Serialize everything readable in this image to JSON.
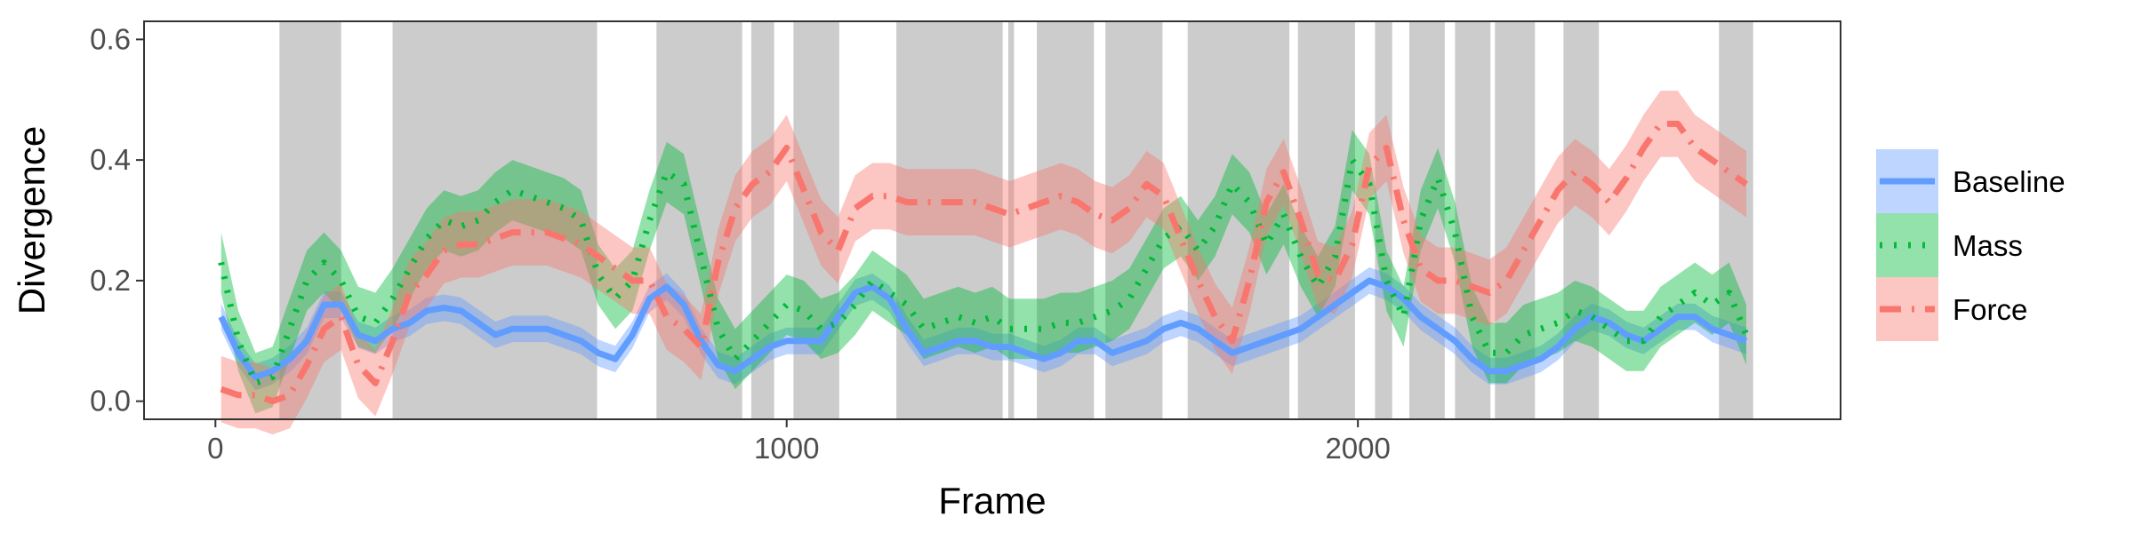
{
  "chart_data": {
    "type": "line",
    "xlabel": "Frame",
    "ylabel": "Divergence",
    "xlim": [
      -125,
      2845
    ],
    "ylim": [
      -0.03,
      0.63
    ],
    "x_ticks": [
      0,
      1000,
      2000
    ],
    "x_tick_labels": [
      "0",
      "1000",
      "2000"
    ],
    "y_ticks": [
      0.0,
      0.2,
      0.4,
      0.6
    ],
    "y_tick_labels": [
      "0.0",
      "0.2",
      "0.4",
      "0.6"
    ],
    "grid": false,
    "legend_position": "right",
    "shaded_regions": [
      [
        112,
        220
      ],
      [
        310,
        668
      ],
      [
        772,
        922
      ],
      [
        938,
        978
      ],
      [
        1012,
        1092
      ],
      [
        1192,
        1378
      ],
      [
        1388,
        1398
      ],
      [
        1438,
        1538
      ],
      [
        1558,
        1658
      ],
      [
        1702,
        1880
      ],
      [
        1895,
        1995
      ],
      [
        2030,
        2060
      ],
      [
        2090,
        2152
      ],
      [
        2170,
        2232
      ],
      [
        2240,
        2310
      ],
      [
        2360,
        2422
      ],
      [
        2632,
        2692
      ]
    ],
    "shade_color": "#cccccc",
    "x": [
      10,
      40,
      70,
      100,
      130,
      160,
      190,
      220,
      250,
      280,
      310,
      340,
      370,
      400,
      430,
      460,
      490,
      520,
      550,
      580,
      610,
      640,
      670,
      700,
      730,
      760,
      790,
      820,
      850,
      880,
      910,
      940,
      970,
      1000,
      1030,
      1060,
      1090,
      1120,
      1150,
      1180,
      1210,
      1240,
      1270,
      1300,
      1330,
      1360,
      1390,
      1420,
      1450,
      1480,
      1510,
      1540,
      1570,
      1600,
      1630,
      1660,
      1690,
      1720,
      1750,
      1780,
      1810,
      1840,
      1870,
      1900,
      1930,
      1960,
      1990,
      2020,
      2050,
      2080,
      2110,
      2140,
      2170,
      2200,
      2230,
      2260,
      2290,
      2320,
      2350,
      2380,
      2410,
      2440,
      2470,
      2500,
      2530,
      2560,
      2590,
      2620,
      2650,
      2680
    ],
    "series": [
      {
        "name": "Baseline",
        "color": "#619cff",
        "style": "solid",
        "values": [
          0.14,
          0.08,
          0.04,
          0.05,
          0.07,
          0.1,
          0.16,
          0.16,
          0.11,
          0.1,
          0.12,
          0.13,
          0.15,
          0.155,
          0.15,
          0.13,
          0.11,
          0.12,
          0.12,
          0.12,
          0.11,
          0.1,
          0.08,
          0.07,
          0.11,
          0.17,
          0.19,
          0.16,
          0.1,
          0.06,
          0.05,
          0.07,
          0.09,
          0.1,
          0.1,
          0.1,
          0.14,
          0.18,
          0.19,
          0.17,
          0.12,
          0.08,
          0.09,
          0.1,
          0.1,
          0.09,
          0.09,
          0.08,
          0.07,
          0.08,
          0.1,
          0.1,
          0.08,
          0.09,
          0.1,
          0.12,
          0.13,
          0.12,
          0.1,
          0.08,
          0.09,
          0.1,
          0.11,
          0.12,
          0.14,
          0.16,
          0.18,
          0.2,
          0.19,
          0.17,
          0.14,
          0.12,
          0.1,
          0.07,
          0.05,
          0.05,
          0.06,
          0.07,
          0.09,
          0.12,
          0.14,
          0.13,
          0.11,
          0.1,
          0.12,
          0.14,
          0.14,
          0.12,
          0.11,
          0.1
        ],
        "band": 0.022
      },
      {
        "name": "Mass",
        "color": "#00ba38",
        "style": "dotted",
        "values": [
          0.23,
          0.1,
          0.03,
          0.04,
          0.12,
          0.2,
          0.23,
          0.2,
          0.14,
          0.13,
          0.17,
          0.22,
          0.27,
          0.3,
          0.29,
          0.3,
          0.33,
          0.35,
          0.34,
          0.33,
          0.32,
          0.3,
          0.21,
          0.17,
          0.2,
          0.3,
          0.38,
          0.36,
          0.24,
          0.12,
          0.07,
          0.1,
          0.13,
          0.16,
          0.15,
          0.12,
          0.13,
          0.16,
          0.2,
          0.18,
          0.16,
          0.12,
          0.13,
          0.14,
          0.13,
          0.14,
          0.12,
          0.12,
          0.12,
          0.13,
          0.13,
          0.14,
          0.15,
          0.17,
          0.22,
          0.27,
          0.29,
          0.25,
          0.29,
          0.36,
          0.33,
          0.26,
          0.31,
          0.24,
          0.19,
          0.24,
          0.4,
          0.36,
          0.2,
          0.14,
          0.3,
          0.37,
          0.28,
          0.14,
          0.08,
          0.08,
          0.11,
          0.12,
          0.13,
          0.15,
          0.14,
          0.12,
          0.1,
          0.1,
          0.14,
          0.16,
          0.18,
          0.16,
          0.18,
          0.11
        ],
        "band": 0.05
      },
      {
        "name": "Force",
        "color": "#f8766d",
        "style": "dashdot",
        "values": [
          0.02,
          0.01,
          0.01,
          0.0,
          0.01,
          0.06,
          0.12,
          0.14,
          0.06,
          0.03,
          0.1,
          0.18,
          0.21,
          0.25,
          0.26,
          0.26,
          0.27,
          0.28,
          0.28,
          0.28,
          0.27,
          0.26,
          0.24,
          0.22,
          0.2,
          0.2,
          0.14,
          0.12,
          0.09,
          0.23,
          0.32,
          0.36,
          0.38,
          0.42,
          0.35,
          0.28,
          0.25,
          0.32,
          0.34,
          0.34,
          0.33,
          0.33,
          0.33,
          0.33,
          0.33,
          0.32,
          0.31,
          0.32,
          0.33,
          0.34,
          0.33,
          0.31,
          0.3,
          0.32,
          0.36,
          0.34,
          0.27,
          0.2,
          0.14,
          0.1,
          0.2,
          0.33,
          0.38,
          0.3,
          0.21,
          0.2,
          0.26,
          0.39,
          0.42,
          0.3,
          0.22,
          0.2,
          0.2,
          0.19,
          0.18,
          0.2,
          0.25,
          0.3,
          0.35,
          0.38,
          0.36,
          0.33,
          0.37,
          0.42,
          0.46,
          0.46,
          0.42,
          0.4,
          0.38,
          0.36
        ],
        "band": 0.055
      }
    ]
  }
}
